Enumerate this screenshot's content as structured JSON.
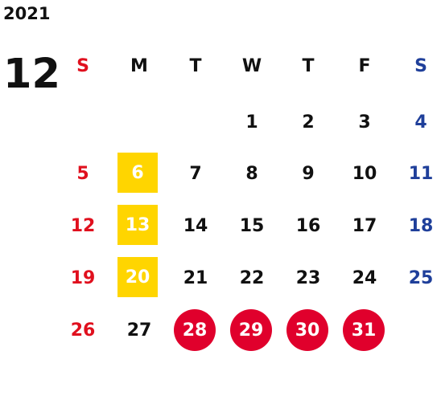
{
  "calendar": {
    "year": "2021",
    "month": "12",
    "weekday_headers": [
      "S",
      "M",
      "T",
      "W",
      "T",
      "F",
      "S"
    ],
    "colors": {
      "sunday": "#e0101e",
      "saturday": "#1f3f9a",
      "weekday": "#111111",
      "holiday_highlight": "#ffd500",
      "closed_highlight": "#e0002c"
    },
    "weeks": [
      [
        "",
        "",
        "",
        "1",
        "2",
        "3",
        "4"
      ],
      [
        "5",
        "6",
        "7",
        "8",
        "9",
        "10",
        "11"
      ],
      [
        "12",
        "13",
        "14",
        "15",
        "16",
        "17",
        "18"
      ],
      [
        "19",
        "20",
        "21",
        "22",
        "23",
        "24",
        "25"
      ],
      [
        "26",
        "27",
        "28",
        "29",
        "30",
        "31",
        ""
      ]
    ],
    "yellow_highlighted_days": [
      "6",
      "13",
      "20"
    ],
    "red_circle_days": [
      "28",
      "29",
      "30",
      "31"
    ]
  }
}
